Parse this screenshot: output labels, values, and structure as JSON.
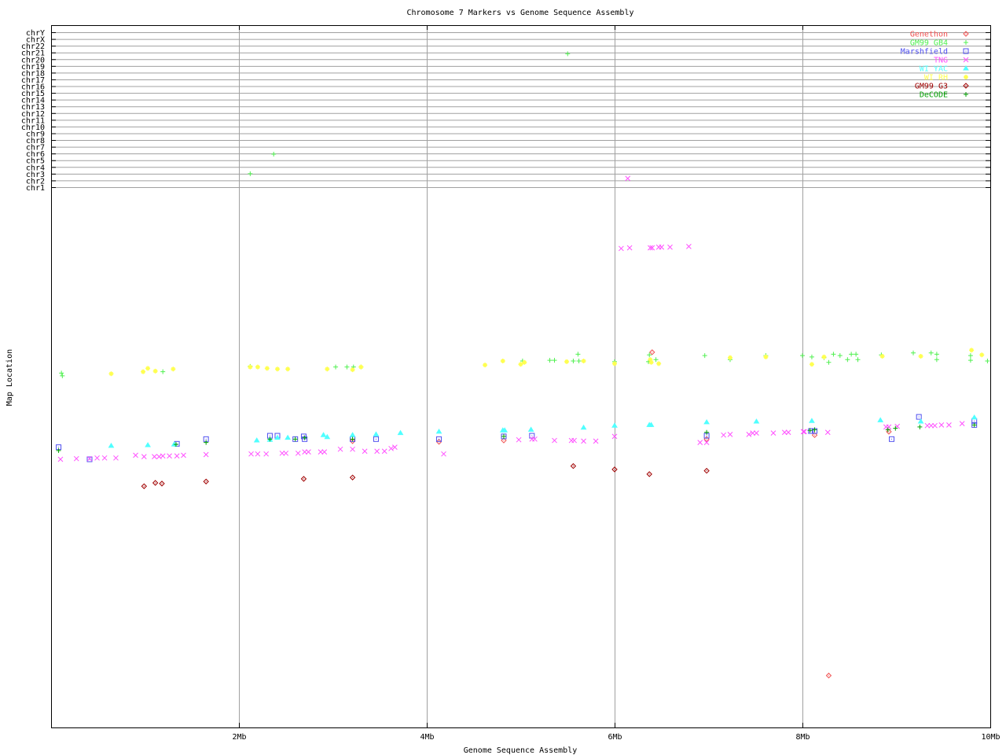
{
  "chart_data": {
    "type": "scatter",
    "title": "Chromosome 7 Markers vs Genome Sequence Assembly",
    "xlabel": "Genome Sequence Assembly",
    "ylabel": "Map Location",
    "xlim": [
      0,
      10
    ],
    "ylim": [
      -80,
      25
    ],
    "x_ticks": [
      {
        "v": 2,
        "label": "2Mb"
      },
      {
        "v": 4,
        "label": "4Mb"
      },
      {
        "v": 6,
        "label": "6Mb"
      },
      {
        "v": 8,
        "label": "8Mb"
      },
      {
        "v": 10,
        "label": "10Mb"
      }
    ],
    "y_ticks": [
      {
        "v": 24,
        "label": "chrY"
      },
      {
        "v": 23,
        "label": "chrX"
      },
      {
        "v": 22,
        "label": "chr22"
      },
      {
        "v": 21,
        "label": "chr21"
      },
      {
        "v": 20,
        "label": "chr20"
      },
      {
        "v": 19,
        "label": "chr19"
      },
      {
        "v": 18,
        "label": "chr18"
      },
      {
        "v": 17,
        "label": "chr17"
      },
      {
        "v": 16,
        "label": "chr16"
      },
      {
        "v": 15,
        "label": "chr15"
      },
      {
        "v": 14,
        "label": "chr14"
      },
      {
        "v": 13,
        "label": "chr13"
      },
      {
        "v": 12,
        "label": "chr12"
      },
      {
        "v": 11,
        "label": "chr11"
      },
      {
        "v": 10,
        "label": "chr10"
      },
      {
        "v": 9,
        "label": "chr9"
      },
      {
        "v": 8,
        "label": "chr8"
      },
      {
        "v": 7,
        "label": "chr7"
      },
      {
        "v": 6,
        "label": "chr6"
      },
      {
        "v": 5,
        "label": "chr5"
      },
      {
        "v": 4,
        "label": "chr4"
      },
      {
        "v": 3,
        "label": "chr3"
      },
      {
        "v": 2,
        "label": "chr2"
      },
      {
        "v": 1,
        "label": "chr1"
      }
    ],
    "grid": true,
    "legend_position": "top-right",
    "series": [
      {
        "name": "Genethon",
        "color": "#f05050",
        "marker": "diamond",
        "points": [
          [
            6.4,
            -23.5
          ],
          [
            8.28,
            -71.5
          ],
          [
            4.82,
            -36.6
          ],
          [
            3.21,
            -36.7
          ],
          [
            4.13,
            -36.8
          ],
          [
            8.13,
            -35.8
          ],
          [
            8.92,
            -35.3
          ],
          [
            6.98,
            -36.4
          ]
        ]
      },
      {
        "name": "GM99 GB4",
        "color": "#50f050",
        "marker": "plus",
        "points": [
          [
            0.11,
            -26.6
          ],
          [
            0.12,
            -27.0
          ],
          [
            1.19,
            -26.4
          ],
          [
            2.12,
            -25.6
          ],
          [
            3.03,
            -25.7
          ],
          [
            3.15,
            -25.7
          ],
          [
            3.22,
            -25.7
          ],
          [
            3.3,
            -25.7
          ],
          [
            5.02,
            -24.8
          ],
          [
            5.31,
            -24.7
          ],
          [
            5.36,
            -24.7
          ],
          [
            5.61,
            -23.8
          ],
          [
            5.56,
            -24.8
          ],
          [
            5.62,
            -24.8
          ],
          [
            6.0,
            -24.9
          ],
          [
            6.37,
            -23.9
          ],
          [
            6.36,
            -24.9
          ],
          [
            6.44,
            -24.6
          ],
          [
            6.96,
            -24.0
          ],
          [
            7.23,
            -24.6
          ],
          [
            7.61,
            -24.0
          ],
          [
            8.0,
            -24.0
          ],
          [
            8.1,
            -24.2
          ],
          [
            8.23,
            -24.3
          ],
          [
            8.33,
            -23.8
          ],
          [
            8.4,
            -24.0
          ],
          [
            8.28,
            -25.0
          ],
          [
            8.48,
            -24.6
          ],
          [
            8.52,
            -23.8
          ],
          [
            8.57,
            -23.8
          ],
          [
            8.59,
            -24.6
          ],
          [
            8.84,
            -23.9
          ],
          [
            9.18,
            -23.6
          ],
          [
            9.37,
            -23.6
          ],
          [
            9.43,
            -23.8
          ],
          [
            9.43,
            -24.6
          ],
          [
            9.79,
            -24.0
          ],
          [
            9.79,
            -24.7
          ],
          [
            9.97,
            -24.8
          ],
          [
            5.5,
            20.8
          ],
          [
            2.37,
            5.9
          ],
          [
            2.12,
            3.0
          ]
        ]
      },
      {
        "name": "Marshfield",
        "color": "#5050f0",
        "marker": "square",
        "points": [
          [
            0.08,
            -37.6
          ],
          [
            0.41,
            -39.4
          ],
          [
            1.65,
            -36.4
          ],
          [
            1.34,
            -37.1
          ],
          [
            2.33,
            -35.9
          ],
          [
            2.41,
            -35.9
          ],
          [
            2.6,
            -36.4
          ],
          [
            2.69,
            -36.0
          ],
          [
            2.7,
            -36.4
          ],
          [
            3.21,
            -36.4
          ],
          [
            3.46,
            -36.4
          ],
          [
            4.13,
            -36.4
          ],
          [
            4.82,
            -36.0
          ],
          [
            5.12,
            -35.9
          ],
          [
            6.98,
            -35.9
          ],
          [
            8.13,
            -35.2
          ],
          [
            8.09,
            -35.2
          ],
          [
            8.95,
            -36.4
          ],
          [
            9.24,
            -33.1
          ],
          [
            9.83,
            -33.7
          ],
          [
            9.83,
            -34.3
          ]
        ]
      },
      {
        "name": "TNG",
        "color": "#ff50ff",
        "marker": "cross",
        "points": [
          [
            0.1,
            -39.4
          ],
          [
            0.27,
            -39.3
          ],
          [
            0.41,
            -39.3
          ],
          [
            0.49,
            -39.2
          ],
          [
            0.57,
            -39.2
          ],
          [
            0.69,
            -39.2
          ],
          [
            0.9,
            -38.8
          ],
          [
            0.99,
            -39.0
          ],
          [
            1.1,
            -39.0
          ],
          [
            1.15,
            -39.0
          ],
          [
            1.19,
            -38.9
          ],
          [
            1.26,
            -38.9
          ],
          [
            1.34,
            -38.9
          ],
          [
            1.41,
            -38.8
          ],
          [
            1.65,
            -38.7
          ],
          [
            2.13,
            -38.6
          ],
          [
            2.2,
            -38.6
          ],
          [
            2.29,
            -38.6
          ],
          [
            2.46,
            -38.5
          ],
          [
            2.5,
            -38.5
          ],
          [
            2.63,
            -38.5
          ],
          [
            2.7,
            -38.3
          ],
          [
            2.74,
            -38.3
          ],
          [
            2.87,
            -38.3
          ],
          [
            2.91,
            -38.3
          ],
          [
            3.08,
            -37.9
          ],
          [
            3.21,
            -37.9
          ],
          [
            3.34,
            -38.2
          ],
          [
            3.47,
            -38.2
          ],
          [
            3.55,
            -38.2
          ],
          [
            3.62,
            -37.8
          ],
          [
            3.66,
            -37.6
          ],
          [
            4.18,
            -38.6
          ],
          [
            4.98,
            -36.5
          ],
          [
            5.12,
            -36.4
          ],
          [
            5.15,
            -36.4
          ],
          [
            5.36,
            -36.6
          ],
          [
            5.54,
            -36.6
          ],
          [
            5.57,
            -36.6
          ],
          [
            5.67,
            -36.7
          ],
          [
            5.8,
            -36.7
          ],
          [
            6.0,
            -36.0
          ],
          [
            6.91,
            -36.9
          ],
          [
            6.98,
            -36.9
          ],
          [
            7.16,
            -35.8
          ],
          [
            7.23,
            -35.7
          ],
          [
            7.43,
            -35.7
          ],
          [
            7.47,
            -35.5
          ],
          [
            7.51,
            -35.5
          ],
          [
            7.69,
            -35.5
          ],
          [
            7.81,
            -35.4
          ],
          [
            7.85,
            -35.4
          ],
          [
            8.01,
            -35.3
          ],
          [
            8.02,
            -35.3
          ],
          [
            8.27,
            -35.4
          ],
          [
            8.89,
            -34.6
          ],
          [
            8.92,
            -34.6
          ],
          [
            9.01,
            -34.5
          ],
          [
            9.33,
            -34.4
          ],
          [
            9.37,
            -34.4
          ],
          [
            9.41,
            -34.4
          ],
          [
            9.48,
            -34.3
          ],
          [
            9.56,
            -34.3
          ],
          [
            9.7,
            -34.1
          ],
          [
            6.07,
            -8.1
          ],
          [
            6.16,
            -8.0
          ],
          [
            6.38,
            -8.0
          ],
          [
            6.4,
            -8.0
          ],
          [
            6.47,
            -7.9
          ],
          [
            6.5,
            -7.9
          ],
          [
            6.59,
            -7.9
          ],
          [
            6.79,
            -7.8
          ],
          [
            6.14,
            2.3
          ]
        ]
      },
      {
        "name": "WI YAC",
        "color": "#50ffff",
        "marker": "triangle",
        "points": [
          [
            0.64,
            -37.4
          ],
          [
            1.03,
            -37.3
          ],
          [
            1.31,
            -37.2
          ],
          [
            2.19,
            -36.6
          ],
          [
            2.33,
            -36.5
          ],
          [
            2.41,
            -36.2
          ],
          [
            2.52,
            -36.2
          ],
          [
            2.9,
            -35.8
          ],
          [
            2.94,
            -36.1
          ],
          [
            3.21,
            -35.8
          ],
          [
            3.46,
            -35.7
          ],
          [
            3.72,
            -35.5
          ],
          [
            4.13,
            -35.3
          ],
          [
            4.81,
            -35.1
          ],
          [
            4.83,
            -35.1
          ],
          [
            5.11,
            -35.0
          ],
          [
            5.67,
            -34.7
          ],
          [
            6.0,
            -34.4
          ],
          [
            6.37,
            -34.3
          ],
          [
            6.39,
            -34.3
          ],
          [
            6.98,
            -33.9
          ],
          [
            7.51,
            -33.8
          ],
          [
            8.1,
            -33.7
          ],
          [
            8.83,
            -33.6
          ],
          [
            9.26,
            -33.8
          ],
          [
            9.83,
            -33.2
          ]
        ]
      },
      {
        "name": "WI RH",
        "color": "#ffff50",
        "marker": "star",
        "points": [
          [
            0.64,
            -26.7
          ],
          [
            0.98,
            -26.4
          ],
          [
            1.03,
            -25.9
          ],
          [
            1.11,
            -26.3
          ],
          [
            1.3,
            -26.0
          ],
          [
            2.12,
            -25.7
          ],
          [
            2.2,
            -25.7
          ],
          [
            2.3,
            -25.9
          ],
          [
            2.41,
            -26.0
          ],
          [
            2.52,
            -26.0
          ],
          [
            2.94,
            -26.0
          ],
          [
            3.21,
            -26.1
          ],
          [
            3.3,
            -25.7
          ],
          [
            4.62,
            -25.4
          ],
          [
            4.81,
            -24.8
          ],
          [
            5.0,
            -25.3
          ],
          [
            5.04,
            -25.0
          ],
          [
            5.49,
            -24.9
          ],
          [
            5.67,
            -24.8
          ],
          [
            6.0,
            -25.2
          ],
          [
            6.38,
            -24.6
          ],
          [
            6.39,
            -25.0
          ],
          [
            6.47,
            -25.2
          ],
          [
            7.23,
            -24.3
          ],
          [
            7.61,
            -24.2
          ],
          [
            8.1,
            -25.3
          ],
          [
            8.23,
            -24.2
          ],
          [
            8.85,
            -24.1
          ],
          [
            9.26,
            -24.1
          ],
          [
            9.8,
            -23.2
          ],
          [
            9.91,
            -23.9
          ]
        ]
      },
      {
        "name": "GM99 G3",
        "color": "#a00000",
        "marker": "diamond",
        "points": [
          [
            0.99,
            -43.4
          ],
          [
            1.11,
            -42.9
          ],
          [
            1.18,
            -43.0
          ],
          [
            1.65,
            -42.7
          ],
          [
            2.69,
            -42.3
          ],
          [
            3.21,
            -42.1
          ],
          [
            5.56,
            -40.4
          ],
          [
            6.0,
            -40.9
          ],
          [
            6.37,
            -41.6
          ],
          [
            6.98,
            -41.1
          ]
        ]
      },
      {
        "name": "DeCODE",
        "color": "#00a000",
        "marker": "plus",
        "points": [
          [
            0.08,
            -38.1
          ],
          [
            1.33,
            -37.2
          ],
          [
            1.65,
            -36.9
          ],
          [
            2.33,
            -36.4
          ],
          [
            2.6,
            -36.4
          ],
          [
            2.7,
            -36.2
          ],
          [
            3.21,
            -36.4
          ],
          [
            4.82,
            -36.0
          ],
          [
            6.98,
            -35.4
          ],
          [
            8.13,
            -35.0
          ],
          [
            8.91,
            -35.0
          ],
          [
            8.99,
            -34.8
          ],
          [
            9.25,
            -34.6
          ],
          [
            9.83,
            -34.3
          ],
          [
            8.08,
            -35.1
          ]
        ]
      }
    ]
  }
}
